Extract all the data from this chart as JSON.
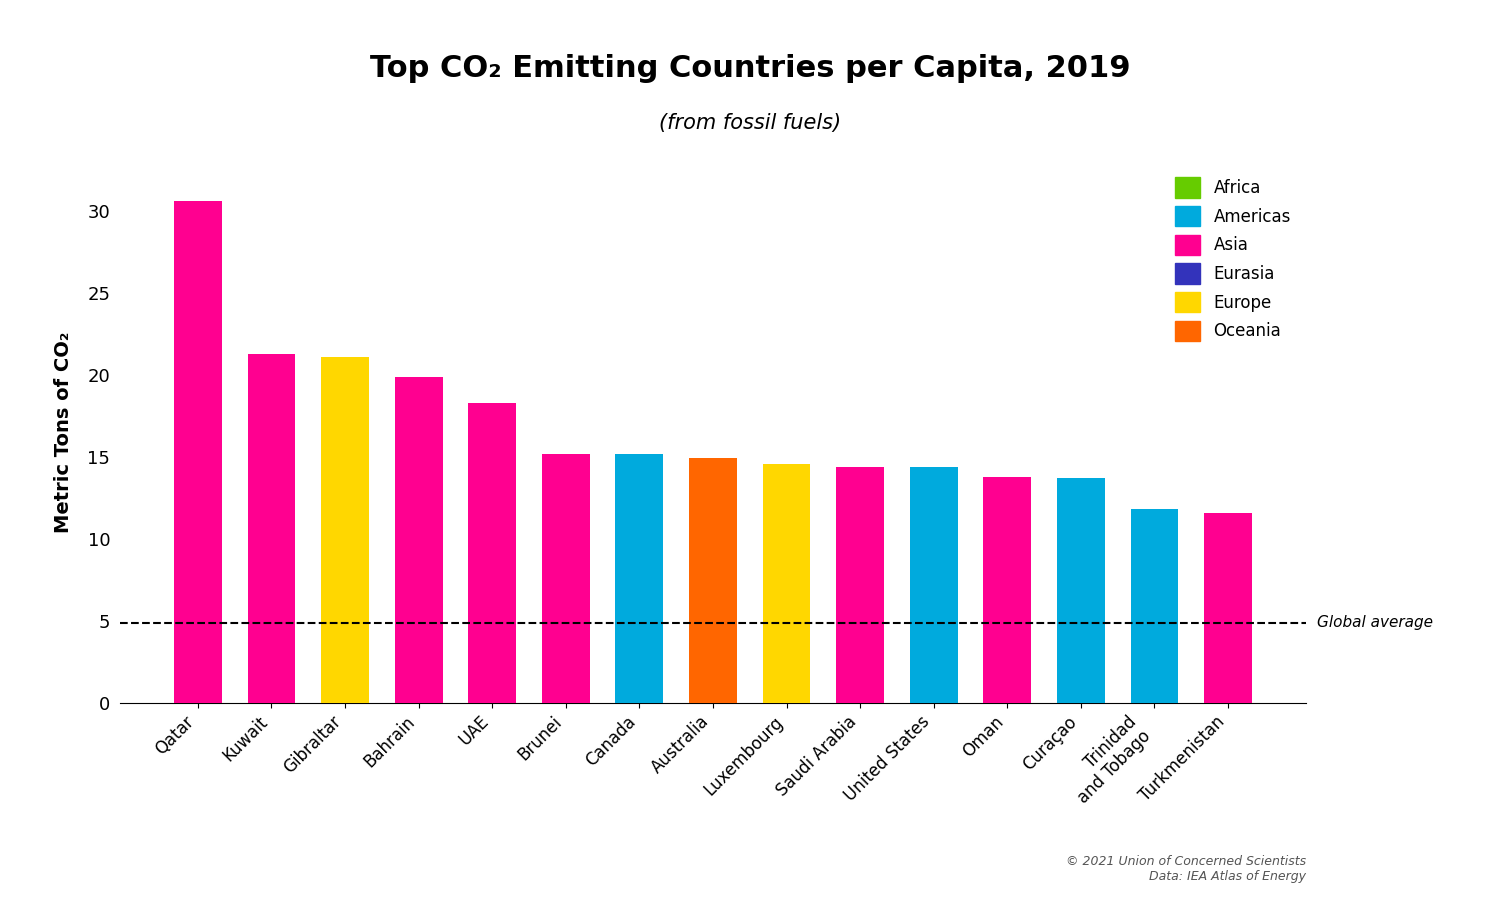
{
  "title": "Top CO₂ Emitting Countries per Capita, 2019",
  "subtitle": "(from fossil fuels)",
  "ylabel": "Metric Tons of CO₂",
  "countries": [
    "Qatar",
    "Kuwait",
    "Gibraltar",
    "Bahrain",
    "UAE",
    "Brunei",
    "Canada",
    "Australia",
    "Luxembourg",
    "Saudi Arabia",
    "United States",
    "Oman",
    "Curaçao",
    "Trinidad\nand Tobago",
    "Turkmenistan"
  ],
  "values": [
    30.6,
    21.3,
    21.1,
    19.9,
    18.3,
    15.2,
    15.2,
    14.95,
    14.6,
    14.4,
    14.4,
    13.8,
    13.7,
    11.8,
    11.6
  ],
  "colors": [
    "#FF0090",
    "#FF0090",
    "#FFD700",
    "#FF0090",
    "#FF0090",
    "#FF0090",
    "#00AADD",
    "#FF6600",
    "#FFD700",
    "#FF0090",
    "#00AADD",
    "#FF0090",
    "#00AADD",
    "#00AADD",
    "#FF0090"
  ],
  "legend_labels": [
    "Africa",
    "Americas",
    "Asia",
    "Eurasia",
    "Europe",
    "Oceania"
  ],
  "legend_colors": [
    "#66CC00",
    "#00AADD",
    "#FF0090",
    "#3333BB",
    "#FFD700",
    "#FF6600"
  ],
  "global_avg": 4.9,
  "global_avg_label": "Global average",
  "copyright": "© 2021 Union of Concerned Scientists\nData: IEA Atlas of Energy",
  "ylim": [
    0,
    33
  ],
  "yticks": [
    0,
    5,
    10,
    15,
    20,
    25,
    30
  ]
}
